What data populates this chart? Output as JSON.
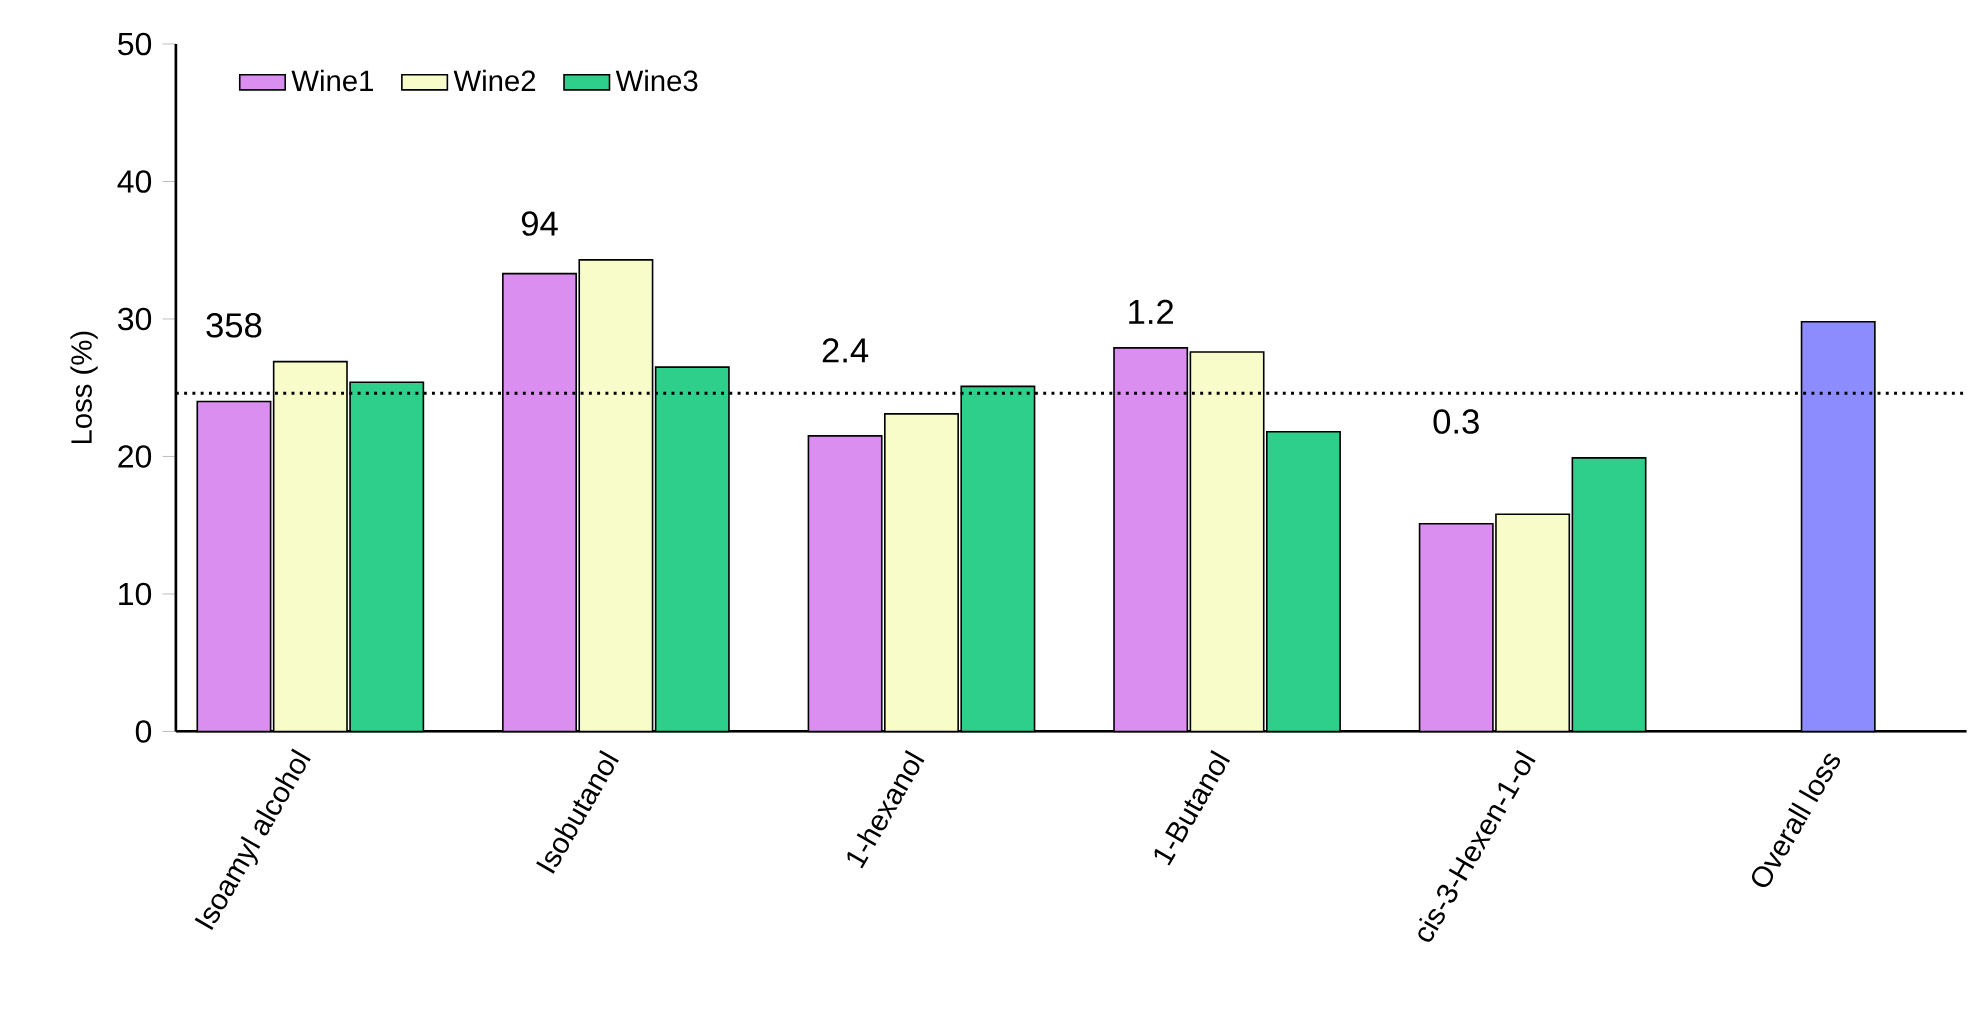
{
  "chart_data": {
    "type": "bar",
    "ylabel": "Loss (%)",
    "categories": [
      "Isoamyl alcohol",
      "Isobutanol",
      "1-hexanol",
      "1-Butanol",
      "cis-3-Hexen-1-ol",
      "Overall loss"
    ],
    "series": [
      {
        "name": "Wine1",
        "color": "#d98ef0",
        "values": [
          24.0,
          33.3,
          21.5,
          27.9,
          15.1,
          null
        ]
      },
      {
        "name": "Wine2",
        "color": "#f8fcc8",
        "values": [
          26.9,
          34.3,
          23.1,
          27.6,
          15.8,
          null
        ]
      },
      {
        "name": "Wine3",
        "color": "#2ecf8a",
        "values": [
          25.4,
          26.5,
          25.1,
          21.8,
          19.9,
          null
        ]
      },
      {
        "color": "#8c8cff",
        "values": [
          null,
          null,
          null,
          null,
          null,
          29.8
        ]
      }
    ],
    "ylim": [
      0,
      50
    ],
    "yticks": [
      0,
      10,
      20,
      30,
      40,
      50
    ],
    "ref_lines": [
      {
        "axis": "y",
        "value": 24.6,
        "line_style": "dotted"
      }
    ],
    "annotations": [
      "358",
      "94",
      "2.4",
      "1.2",
      "0.3"
    ],
    "legend": "top left"
  }
}
